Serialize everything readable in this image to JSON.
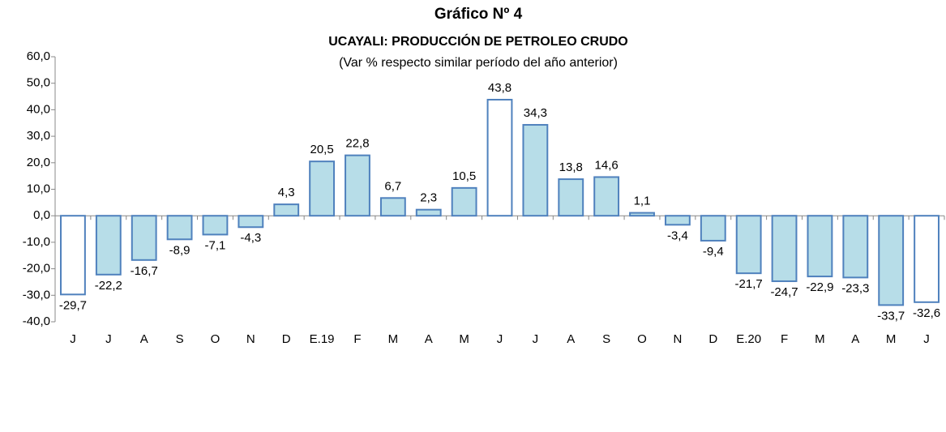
{
  "chart_data": {
    "type": "bar",
    "title": "Gráfico Nº 4",
    "subtitle": "UCAYALI: PRODUCCIÓN DE PETROLEO CRUDO",
    "note": "(Var % respecto similar período del año anterior)",
    "categories": [
      "J",
      "J",
      "A",
      "S",
      "O",
      "N",
      "D",
      "E.19",
      "F",
      "M",
      "A",
      "M",
      "J",
      "J",
      "A",
      "S",
      "O",
      "N",
      "D",
      "E.20",
      "F",
      "M",
      "A",
      "M",
      "J"
    ],
    "values": [
      -29.7,
      -22.2,
      -16.7,
      -8.9,
      -7.1,
      -4.3,
      4.3,
      20.5,
      22.8,
      6.7,
      2.3,
      10.5,
      43.8,
      34.3,
      13.8,
      14.6,
      1.1,
      -3.4,
      -9.4,
      -21.7,
      -24.7,
      -22.9,
      -23.3,
      -33.7,
      -32.6
    ],
    "value_labels": [
      "-29,7",
      "-22,2",
      "-16,7",
      "-8,9",
      "-7,1",
      "-4,3",
      "4,3",
      "20,5",
      "22,8",
      "6,7",
      "2,3",
      "10,5",
      "43,8",
      "34,3",
      "13,8",
      "14,6",
      "1,1",
      "-3,4",
      "-9,4",
      "-21,7",
      "-24,7",
      "-22,9",
      "-23,3",
      "-33,7",
      "-32,6"
    ],
    "colors": [
      "#ffffff",
      "#b7dde8",
      "#b7dde8",
      "#b7dde8",
      "#b7dde8",
      "#b7dde8",
      "#b7dde8",
      "#b7dde8",
      "#b7dde8",
      "#b7dde8",
      "#b7dde8",
      "#b7dde8",
      "#ffffff",
      "#b7dde8",
      "#b7dde8",
      "#b7dde8",
      "#b7dde8",
      "#b7dde8",
      "#b7dde8",
      "#b7dde8",
      "#b7dde8",
      "#b7dde8",
      "#b7dde8",
      "#b7dde8",
      "#ffffff"
    ],
    "edge_color": "#4f81bd",
    "ylim": [
      -40,
      60
    ],
    "yticks": [
      {
        "value": -40,
        "label": "-40,0"
      },
      {
        "value": -30,
        "label": "-30,0"
      },
      {
        "value": -20,
        "label": "-20,0"
      },
      {
        "value": -10,
        "label": "-10,0"
      },
      {
        "value": 0,
        "label": "0,0"
      },
      {
        "value": 10,
        "label": "10,0"
      },
      {
        "value": 20,
        "label": "20,0"
      },
      {
        "value": 30,
        "label": "30,0"
      },
      {
        "value": 40,
        "label": "40,0"
      },
      {
        "value": 50,
        "label": "50,0"
      },
      {
        "value": 60,
        "label": "60,0"
      }
    ],
    "grid": false
  }
}
